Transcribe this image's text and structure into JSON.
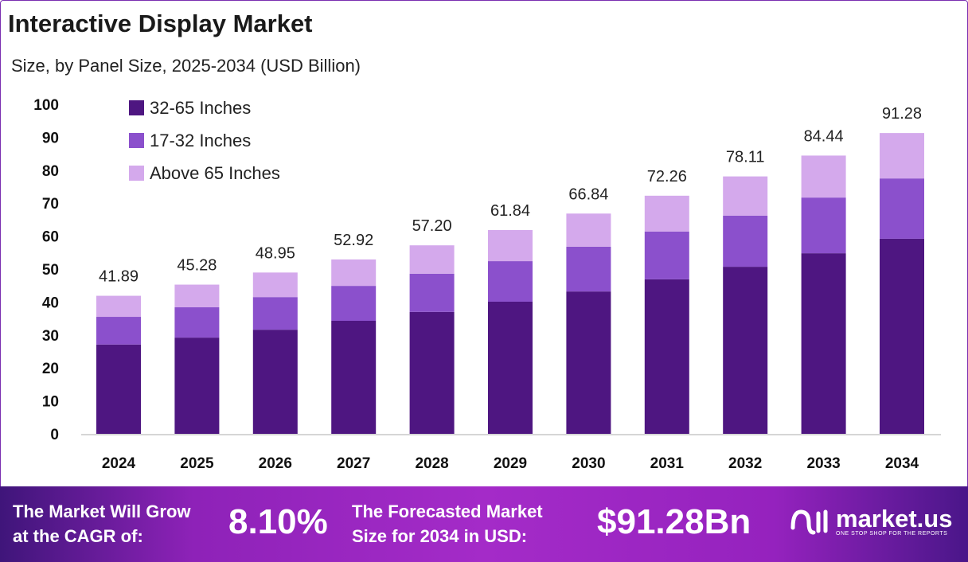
{
  "title": "Interactive Display Market",
  "subtitle": "Size, by Panel Size, 2025-2034 (USD Billion)",
  "chart_data": {
    "type": "bar",
    "stacked": true,
    "categories": [
      "2024",
      "2025",
      "2026",
      "2027",
      "2028",
      "2029",
      "2030",
      "2031",
      "2032",
      "2033",
      "2034"
    ],
    "series": [
      {
        "name": "32-65 Inches",
        "color": "#4E1681",
        "values": [
          27.1,
          29.2,
          31.6,
          34.3,
          37.0,
          40.1,
          43.2,
          46.9,
          50.7,
          54.8,
          59.2
        ]
      },
      {
        "name": "17-32 Inches",
        "color": "#8B50CC",
        "values": [
          8.4,
          9.2,
          9.9,
          10.6,
          11.6,
          12.3,
          13.6,
          14.5,
          15.5,
          16.9,
          18.3
        ]
      },
      {
        "name": "Above 65 Inches",
        "color": "#D4A9EC",
        "values": [
          6.39,
          6.88,
          7.45,
          8.02,
          8.6,
          9.44,
          10.04,
          10.86,
          11.91,
          12.74,
          13.78
        ]
      }
    ],
    "totals": [
      "41.89",
      "45.28",
      "48.95",
      "52.92",
      "57.20",
      "61.84",
      "66.84",
      "72.26",
      "78.11",
      "84.44",
      "91.28"
    ],
    "ylim": [
      0,
      100
    ],
    "yticks": [
      0,
      10,
      20,
      30,
      40,
      50,
      60,
      70,
      80,
      90,
      100
    ],
    "grid": false,
    "legend_position": "top-left"
  },
  "footer": {
    "cagr_label_1": "The Market Will Grow",
    "cagr_label_2": "at the CAGR of:",
    "cagr_value": "8.10%",
    "forecast_label_1": "The Forecasted Market",
    "forecast_label_2": "Size for 2034 in USD:",
    "forecast_value": "$91.28Bn",
    "logo_name": "market.us",
    "logo_tagline": "ONE STOP SHOP FOR THE REPORTS"
  }
}
